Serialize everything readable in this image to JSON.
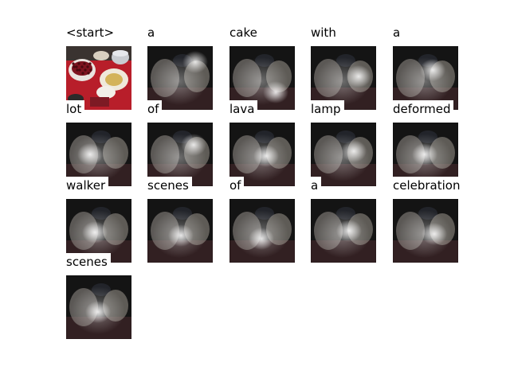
{
  "words": [
    "<start>",
    "a",
    "cake",
    "with",
    "a",
    "lot",
    "of",
    "lava",
    "lamp",
    "deformed",
    "walker",
    "scenes",
    "of",
    "a",
    "celebration",
    "scenes"
  ],
  "colors": {
    "background": "#ffffff",
    "text": "#000000",
    "table_cloth": "#b81e2a",
    "attention_light": "#e8e4e0",
    "dark": "#141414"
  }
}
